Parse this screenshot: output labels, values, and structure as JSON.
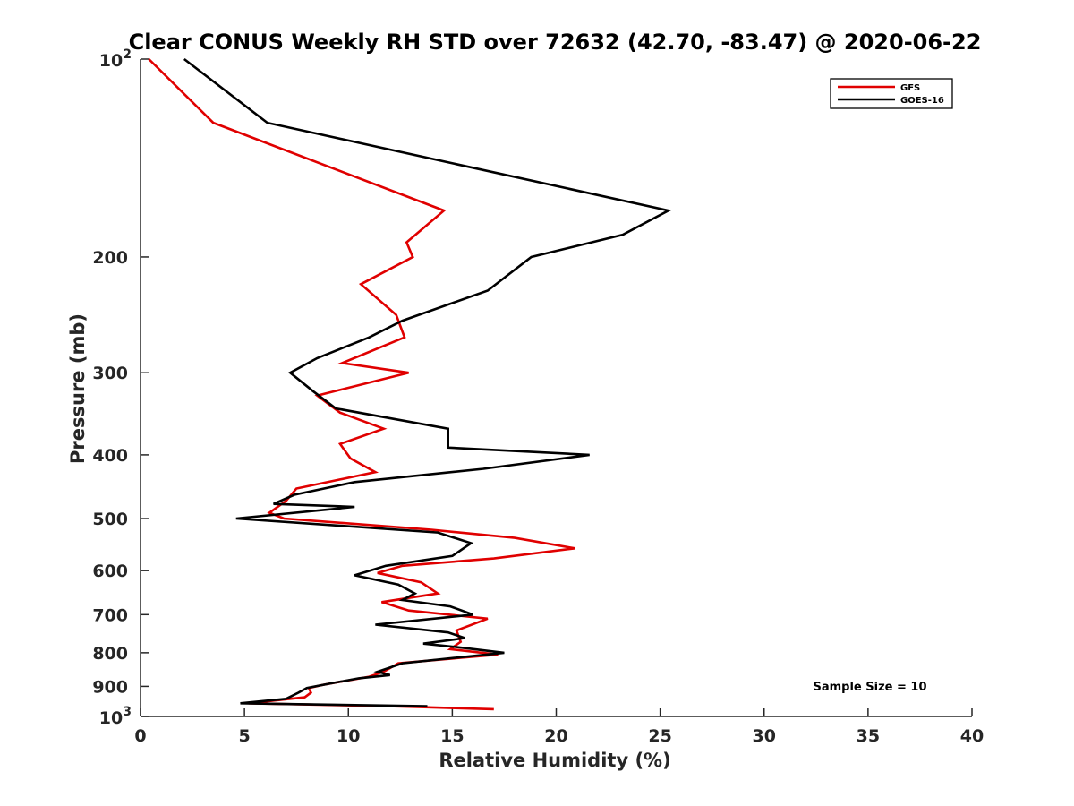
{
  "chart_data": {
    "type": "line",
    "title": "Clear CONUS Weekly RH STD over 72632 (42.70, -83.47) @ 2020-06-22",
    "xlabel": "Relative Humidity (%)",
    "ylabel": "Pressure (mb)",
    "xlim": [
      0,
      40
    ],
    "ylim": [
      100,
      1000
    ],
    "y_scale": "log",
    "y_reversed": true,
    "x_ticks": [
      0,
      5,
      10,
      15,
      20,
      25,
      30,
      35,
      40
    ],
    "y_ticks": [
      {
        "value": 100,
        "label": "10",
        "exp": "2"
      },
      {
        "value": 200,
        "label": "200"
      },
      {
        "value": 300,
        "label": "300"
      },
      {
        "value": 400,
        "label": "400"
      },
      {
        "value": 500,
        "label": "500"
      },
      {
        "value": 600,
        "label": "600"
      },
      {
        "value": 700,
        "label": "700"
      },
      {
        "value": 800,
        "label": "800"
      },
      {
        "value": 900,
        "label": "900"
      },
      {
        "value": 1000,
        "label": "10",
        "exp": "3"
      }
    ],
    "grid": false,
    "legend_position": "top-right",
    "annotation": "Sample Size = 10",
    "series": [
      {
        "name": "GFS",
        "color": "#e00000",
        "points": [
          [
            0.4,
            100
          ],
          [
            3.5,
            125
          ],
          [
            14.6,
            170
          ],
          [
            12.8,
            190
          ],
          [
            13.1,
            200
          ],
          [
            10.6,
            220
          ],
          [
            12.3,
            245
          ],
          [
            12.7,
            265
          ],
          [
            9.7,
            290
          ],
          [
            12.9,
            300
          ],
          [
            8.5,
            325
          ],
          [
            9.6,
            345
          ],
          [
            11.7,
            365
          ],
          [
            9.6,
            385
          ],
          [
            10.1,
            405
          ],
          [
            11.3,
            425
          ],
          [
            7.5,
            450
          ],
          [
            7.0,
            470
          ],
          [
            6.2,
            490
          ],
          [
            6.9,
            500
          ],
          [
            14.0,
            520
          ],
          [
            18.0,
            535
          ],
          [
            20.9,
            555
          ],
          [
            17.0,
            575
          ],
          [
            12.6,
            590
          ],
          [
            11.4,
            605
          ],
          [
            13.5,
            625
          ],
          [
            14.3,
            650
          ],
          [
            11.6,
            670
          ],
          [
            12.9,
            690
          ],
          [
            16.7,
            710
          ],
          [
            15.2,
            740
          ],
          [
            15.4,
            770
          ],
          [
            14.9,
            790
          ],
          [
            17.2,
            805
          ],
          [
            12.4,
            830
          ],
          [
            11.7,
            855
          ],
          [
            11.0,
            870
          ],
          [
            8.8,
            895
          ],
          [
            8.1,
            905
          ],
          [
            8.2,
            920
          ],
          [
            7.9,
            935
          ],
          [
            5.2,
            955
          ],
          [
            12.0,
            965
          ],
          [
            17.0,
            975
          ]
        ]
      },
      {
        "name": "GOES-16",
        "color": "#000000",
        "points": [
          [
            2.1,
            100
          ],
          [
            6.1,
            125
          ],
          [
            25.4,
            170
          ],
          [
            23.2,
            185
          ],
          [
            18.8,
            200
          ],
          [
            16.7,
            225
          ],
          [
            12.6,
            250
          ],
          [
            11.0,
            265
          ],
          [
            8.5,
            285
          ],
          [
            7.2,
            300
          ],
          [
            8.3,
            320
          ],
          [
            9.4,
            340
          ],
          [
            14.8,
            365
          ],
          [
            14.8,
            390
          ],
          [
            21.6,
            400
          ],
          [
            16.5,
            420
          ],
          [
            10.3,
            440
          ],
          [
            7.4,
            460
          ],
          [
            6.4,
            475
          ],
          [
            10.3,
            480
          ],
          [
            4.6,
            500
          ],
          [
            14.3,
            525
          ],
          [
            15.9,
            545
          ],
          [
            15.0,
            570
          ],
          [
            11.8,
            590
          ],
          [
            10.3,
            610
          ],
          [
            12.4,
            630
          ],
          [
            13.2,
            650
          ],
          [
            12.6,
            665
          ],
          [
            14.9,
            680
          ],
          [
            16.0,
            700
          ],
          [
            11.3,
            725
          ],
          [
            14.8,
            745
          ],
          [
            15.6,
            760
          ],
          [
            13.6,
            775
          ],
          [
            15.3,
            785
          ],
          [
            17.5,
            800
          ],
          [
            12.6,
            830
          ],
          [
            11.4,
            855
          ],
          [
            12.0,
            865
          ],
          [
            10.5,
            875
          ],
          [
            9.2,
            890
          ],
          [
            8.0,
            905
          ],
          [
            7.6,
            920
          ],
          [
            7.0,
            940
          ],
          [
            4.8,
            955
          ],
          [
            13.8,
            965
          ]
        ]
      }
    ]
  }
}
